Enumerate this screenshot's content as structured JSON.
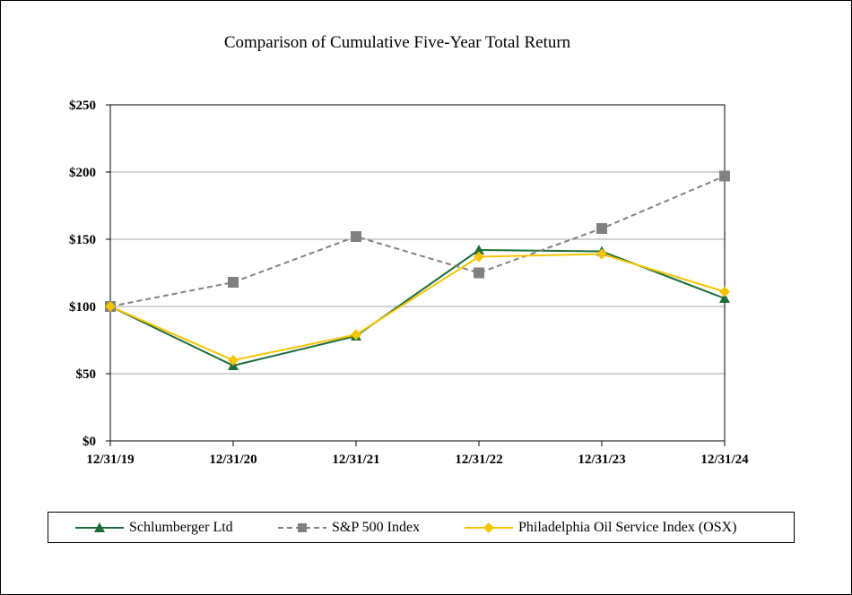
{
  "chart_data": {
    "type": "line",
    "title": "Comparison of Cumulative Five-Year Total Return",
    "xlabel": "",
    "ylabel": "",
    "categories": [
      "12/31/19",
      "12/31/20",
      "12/31/21",
      "12/31/22",
      "12/31/23",
      "12/31/24"
    ],
    "ylim": [
      0,
      250
    ],
    "yticks": [
      0,
      50,
      100,
      150,
      200,
      250
    ],
    "ytick_labels": [
      "$0",
      "$50",
      "$100",
      "$150",
      "$200",
      "$250"
    ],
    "grid": true,
    "legend_position": "bottom",
    "series": [
      {
        "name": "Schlumberger Ltd",
        "values": [
          100,
          56,
          78,
          142,
          141,
          106
        ],
        "color": "#1e6b3a",
        "marker": "triangle",
        "dash": "solid"
      },
      {
        "name": "S&P 500 Index",
        "values": [
          100,
          118,
          152,
          125,
          158,
          197
        ],
        "color": "#808080",
        "marker": "square",
        "dash": "dashed"
      },
      {
        "name": "Philadelphia Oil Service Index (OSX)",
        "values": [
          100,
          60,
          79,
          137,
          139,
          111
        ],
        "color": "#f5c400",
        "marker": "diamond",
        "dash": "solid"
      }
    ]
  }
}
